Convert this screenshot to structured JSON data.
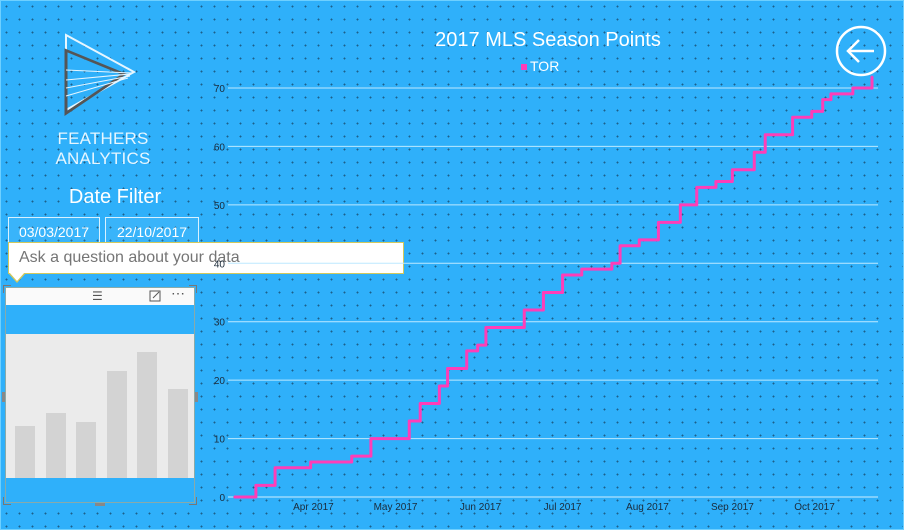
{
  "brand": {
    "name": "FEATHERS ANALYTICS"
  },
  "filter": {
    "title": "Date Filter",
    "start_date": "03/03/2017",
    "end_date": "22/10/2017"
  },
  "qa": {
    "placeholder": "Ask a question about your data"
  },
  "colors": {
    "background": "#2fb0fa",
    "series": "#ff3db8",
    "gridline": "#bde9ff"
  },
  "icons": {
    "back": "back-arrow-icon",
    "drag": "drag-handle-icon",
    "focus": "focus-mode-icon",
    "more": "more-options-icon"
  },
  "preview_chart": {
    "values": [
      45,
      56,
      48,
      92,
      108,
      76
    ]
  },
  "chart_data": {
    "type": "line",
    "title": "2017 MLS Season Points",
    "legend_position": "top",
    "series": [
      {
        "name": "TOR",
        "color": "#ff3db8",
        "x": [
          "2017-03-03",
          "2017-03-11",
          "2017-03-18",
          "2017-03-31",
          "2017-04-15",
          "2017-04-22",
          "2017-05-06",
          "2017-05-10",
          "2017-05-17",
          "2017-05-20",
          "2017-05-27",
          "2017-05-31",
          "2017-06-03",
          "2017-06-17",
          "2017-06-24",
          "2017-07-01",
          "2017-07-08",
          "2017-07-19",
          "2017-07-22",
          "2017-07-29",
          "2017-08-05",
          "2017-08-13",
          "2017-08-19",
          "2017-08-26",
          "2017-09-01",
          "2017-09-09",
          "2017-09-13",
          "2017-09-16",
          "2017-09-23",
          "2017-09-27",
          "2017-09-30",
          "2017-10-04",
          "2017-10-07",
          "2017-10-15",
          "2017-10-22"
        ],
        "y": [
          0,
          2,
          5,
          6,
          7,
          10,
          13,
          16,
          19,
          22,
          25,
          26,
          29,
          32,
          35,
          38,
          39,
          40,
          43,
          44,
          47,
          50,
          53,
          54,
          56,
          59,
          62,
          62,
          65,
          65,
          66,
          68,
          69,
          70,
          72
        ]
      }
    ],
    "y_ticks": [
      0,
      10,
      20,
      30,
      40,
      50,
      60,
      70
    ],
    "x_ticks": [
      {
        "date": "2017-04-01",
        "label": "Apr 2017"
      },
      {
        "date": "2017-05-01",
        "label": "May 2017"
      },
      {
        "date": "2017-06-01",
        "label": "Jun 2017"
      },
      {
        "date": "2017-07-01",
        "label": "Jul 2017"
      },
      {
        "date": "2017-08-01",
        "label": "Aug 2017"
      },
      {
        "date": "2017-09-01",
        "label": "Sep 2017"
      },
      {
        "date": "2017-10-01",
        "label": "Oct 2017"
      }
    ],
    "x_range": [
      "2017-03-03",
      "2017-10-22"
    ],
    "ylim": [
      0,
      70
    ],
    "grid": true
  }
}
